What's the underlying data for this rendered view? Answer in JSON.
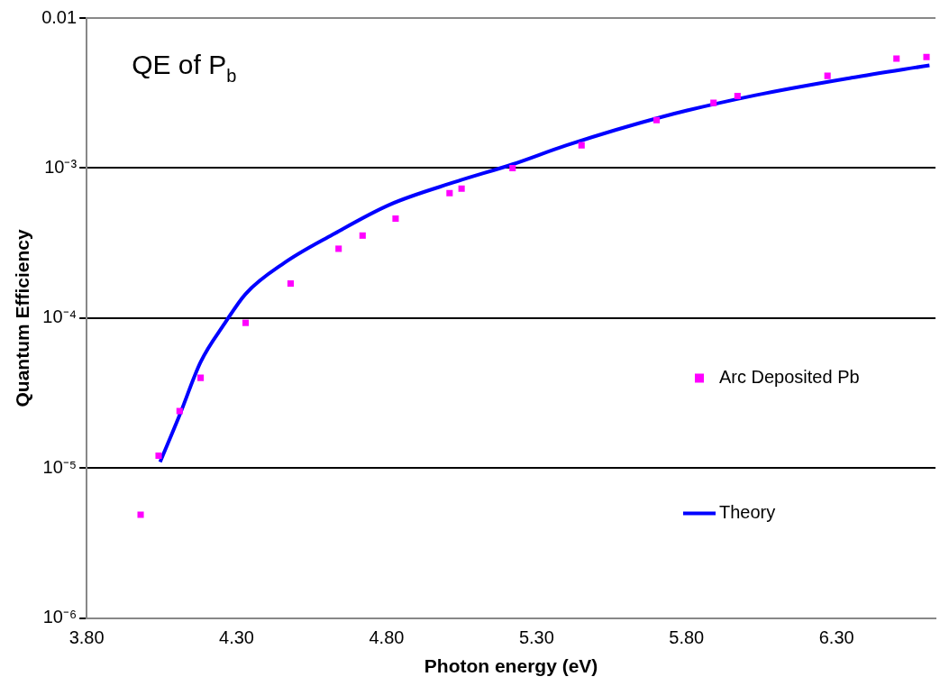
{
  "chart_data": {
    "type": "scatter",
    "xlabel": "Photon energy (eV)",
    "ylabel": "Quantum Efficiency",
    "annotations": [
      "QE of P$_{b}$"
    ],
    "log": "y",
    "grid": "y",
    "legend": "right",
    "xlim": [
      3.8,
      6.63
    ],
    "xticks": [
      {
        "value": 3.8,
        "label": "3.80"
      },
      {
        "value": 4.3,
        "label": "4.30"
      },
      {
        "value": 4.8,
        "label": "4.80"
      },
      {
        "value": 5.3,
        "label": "5.30"
      },
      {
        "value": 5.8,
        "label": "5.80"
      },
      {
        "value": 6.3,
        "label": "6.30"
      }
    ],
    "ylim": [
      1e-06,
      0.01
    ],
    "yticks": [
      {
        "value": 1e-06,
        "label": "10⁻⁶"
      },
      {
        "value": 1e-05,
        "label": "10⁻⁵"
      },
      {
        "value": 0.0001,
        "label": "10⁻⁴"
      },
      {
        "value": 0.001,
        "label": "10⁻³"
      },
      {
        "value": 0.01,
        "label": "0.01"
      }
    ],
    "series": [
      {
        "name": "Arc Deposited Pb",
        "type": "scatter",
        "marker": "square",
        "color": "#ff00ff",
        "x": [
          3.98,
          4.04,
          4.11,
          4.18,
          4.33,
          4.48,
          4.64,
          4.72,
          4.83,
          5.01,
          5.05,
          5.22,
          5.45,
          5.7,
          5.89,
          5.97,
          6.27,
          6.5,
          6.6
        ],
        "values": [
          4.9e-06,
          1.21e-05,
          2.4e-05,
          4e-05,
          9.3e-05,
          0.00017,
          0.00029,
          0.000355,
          0.00046,
          0.00068,
          0.00073,
          0.001,
          0.00142,
          0.00209,
          0.00272,
          0.00302,
          0.00412,
          0.00537,
          0.0055
        ]
      },
      {
        "name": "Theory",
        "type": "line",
        "marker": "none",
        "line_style": "solid",
        "color": "#0000ff",
        "x": [
          4.045,
          4.11,
          4.18,
          4.26,
          4.33,
          4.46,
          4.62,
          4.81,
          5.03,
          5.22,
          5.4,
          5.72,
          6.03,
          6.35,
          6.61
        ],
        "values": [
          1.1e-05,
          2.26e-05,
          5.1e-05,
          9.2e-05,
          0.000145,
          0.000234,
          0.00036,
          0.00057,
          0.00081,
          0.00106,
          0.00142,
          0.0022,
          0.00306,
          0.004,
          0.00484
        ]
      }
    ]
  }
}
